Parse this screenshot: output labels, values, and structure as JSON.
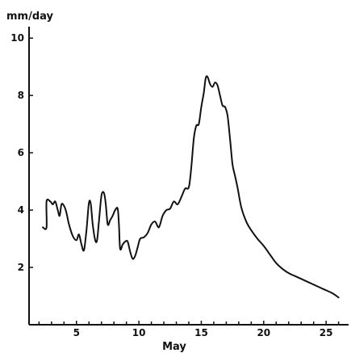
{
  "chart_data": {
    "type": "line",
    "ylabel": "mm/day",
    "xlabel": "May",
    "xlim": [
      1.2,
      26.8
    ],
    "ylim": [
      0,
      10.4
    ],
    "x_ticks": [
      5,
      10,
      15,
      20,
      25
    ],
    "x_minor_ticks": [
      2,
      3,
      4,
      6,
      7,
      8,
      9,
      11,
      12,
      13,
      14,
      16,
      17,
      18,
      19,
      21,
      22,
      23,
      24,
      26
    ],
    "y_ticks": [
      2,
      4,
      6,
      8,
      10
    ],
    "grid": false,
    "series": [
      {
        "points": [
          [
            2.3,
            3.4
          ],
          [
            2.6,
            3.4
          ],
          [
            2.6,
            4.3
          ],
          [
            2.9,
            4.3
          ],
          [
            3.1,
            4.2
          ],
          [
            3.3,
            4.3
          ],
          [
            3.5,
            4.0
          ],
          [
            3.65,
            3.8
          ],
          [
            3.8,
            4.2
          ],
          [
            4.0,
            4.15
          ],
          [
            4.2,
            3.9
          ],
          [
            4.4,
            3.5
          ],
          [
            4.7,
            3.1
          ],
          [
            5.0,
            2.95
          ],
          [
            5.2,
            3.15
          ],
          [
            5.4,
            2.8
          ],
          [
            5.6,
            2.6
          ],
          [
            5.8,
            3.3
          ],
          [
            6.0,
            4.25
          ],
          [
            6.15,
            4.2
          ],
          [
            6.3,
            3.5
          ],
          [
            6.5,
            2.95
          ],
          [
            6.65,
            2.95
          ],
          [
            6.8,
            3.6
          ],
          [
            7.0,
            4.5
          ],
          [
            7.2,
            4.6
          ],
          [
            7.35,
            4.2
          ],
          [
            7.5,
            3.5
          ],
          [
            7.7,
            3.65
          ],
          [
            7.9,
            3.8
          ],
          [
            8.1,
            4.0
          ],
          [
            8.3,
            4.05
          ],
          [
            8.4,
            3.5
          ],
          [
            8.5,
            2.65
          ],
          [
            8.7,
            2.8
          ],
          [
            8.9,
            2.9
          ],
          [
            9.1,
            2.9
          ],
          [
            9.3,
            2.55
          ],
          [
            9.5,
            2.3
          ],
          [
            9.7,
            2.4
          ],
          [
            9.9,
            2.7
          ],
          [
            10.1,
            3.0
          ],
          [
            10.4,
            3.05
          ],
          [
            10.7,
            3.2
          ],
          [
            11.0,
            3.5
          ],
          [
            11.3,
            3.6
          ],
          [
            11.6,
            3.4
          ],
          [
            11.9,
            3.8
          ],
          [
            12.2,
            4.0
          ],
          [
            12.5,
            4.05
          ],
          [
            12.8,
            4.3
          ],
          [
            13.1,
            4.2
          ],
          [
            13.4,
            4.45
          ],
          [
            13.7,
            4.75
          ],
          [
            14.0,
            4.8
          ],
          [
            14.2,
            5.5
          ],
          [
            14.4,
            6.5
          ],
          [
            14.6,
            6.95
          ],
          [
            14.8,
            7.0
          ],
          [
            15.0,
            7.6
          ],
          [
            15.2,
            8.1
          ],
          [
            15.35,
            8.6
          ],
          [
            15.5,
            8.65
          ],
          [
            15.7,
            8.4
          ],
          [
            15.9,
            8.3
          ],
          [
            16.1,
            8.45
          ],
          [
            16.3,
            8.35
          ],
          [
            16.5,
            8.0
          ],
          [
            16.7,
            7.65
          ],
          [
            16.9,
            7.6
          ],
          [
            17.1,
            7.3
          ],
          [
            17.3,
            6.5
          ],
          [
            17.5,
            5.6
          ],
          [
            17.7,
            5.2
          ],
          [
            17.9,
            4.8
          ],
          [
            18.2,
            4.1
          ],
          [
            18.6,
            3.6
          ],
          [
            19.0,
            3.3
          ],
          [
            19.5,
            3.0
          ],
          [
            20.0,
            2.75
          ],
          [
            20.5,
            2.45
          ],
          [
            21.0,
            2.15
          ],
          [
            21.5,
            1.95
          ],
          [
            22.0,
            1.8
          ],
          [
            22.5,
            1.7
          ],
          [
            23.0,
            1.6
          ],
          [
            23.5,
            1.5
          ],
          [
            24.0,
            1.4
          ],
          [
            24.5,
            1.3
          ],
          [
            25.0,
            1.2
          ],
          [
            25.5,
            1.1
          ],
          [
            26.0,
            0.95
          ]
        ]
      }
    ]
  }
}
